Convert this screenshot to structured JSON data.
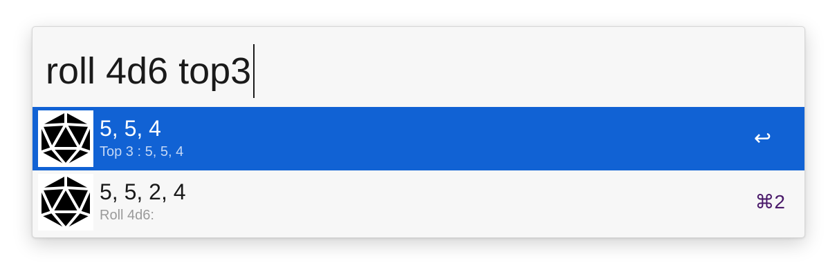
{
  "query": {
    "text": "roll 4d6 top3"
  },
  "results": [
    {
      "title": "5, 5, 4",
      "subtitle": "Top 3 : 5, 5, 4",
      "shortcut": "↩",
      "icon": "d20-dice-icon",
      "selected": true
    },
    {
      "title": "5, 5, 2, 4",
      "subtitle": "Roll 4d6:",
      "shortcut": "⌘2",
      "icon": "d20-dice-icon",
      "selected": false
    }
  ],
  "colors": {
    "selection": "#1162d4",
    "shortcut": "#4a1a6a",
    "background": "#f7f7f7"
  }
}
